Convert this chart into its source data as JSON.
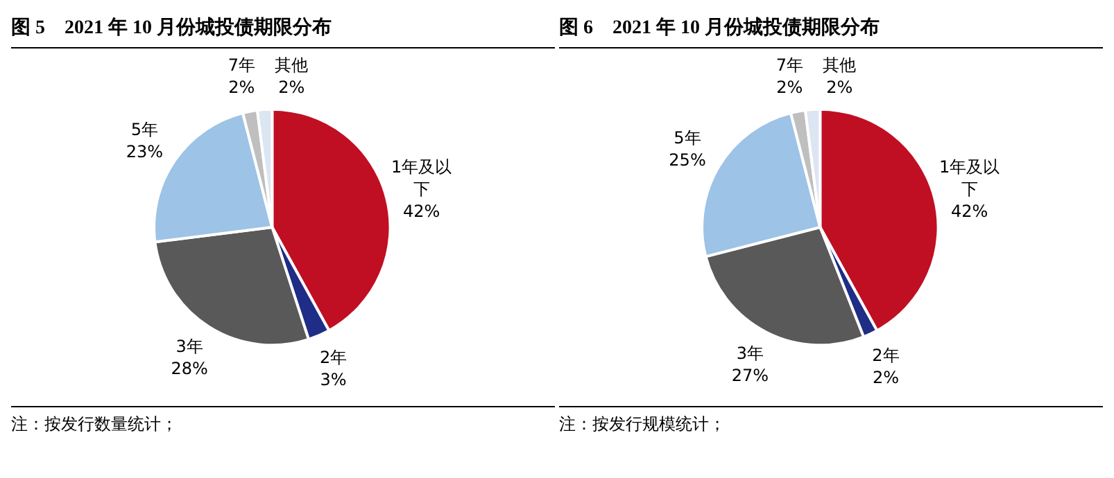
{
  "chart_data": [
    {
      "type": "pie",
      "title": "图 5　2021 年 10 月份城投债期限分布",
      "categories": [
        "1年及以下",
        "2年",
        "3年",
        "5年",
        "7年",
        "其他"
      ],
      "values": [
        42,
        3,
        28,
        23,
        2,
        2
      ],
      "value_labels": [
        "42%",
        "3%",
        "28%",
        "23%",
        "2%",
        "2%"
      ],
      "colors": [
        "#c00f23",
        "#1f2d86",
        "#595959",
        "#9dc3e6",
        "#bfbfbf",
        "#dce6f2"
      ],
      "annotations": [
        "注：按发行数量统计；"
      ]
    },
    {
      "type": "pie",
      "title": "图 6　2021 年 10 月份城投债期限分布",
      "categories": [
        "1年及以下",
        "2年",
        "3年",
        "5年",
        "7年",
        "其他"
      ],
      "values": [
        42,
        2,
        27,
        25,
        2,
        2
      ],
      "value_labels": [
        "42%",
        "2%",
        "27%",
        "25%",
        "2%",
        "2%"
      ],
      "colors": [
        "#c00f23",
        "#1f2d86",
        "#595959",
        "#9dc3e6",
        "#bfbfbf",
        "#dce6f2"
      ],
      "annotations": [
        "注：按发行规模统计；"
      ]
    }
  ]
}
